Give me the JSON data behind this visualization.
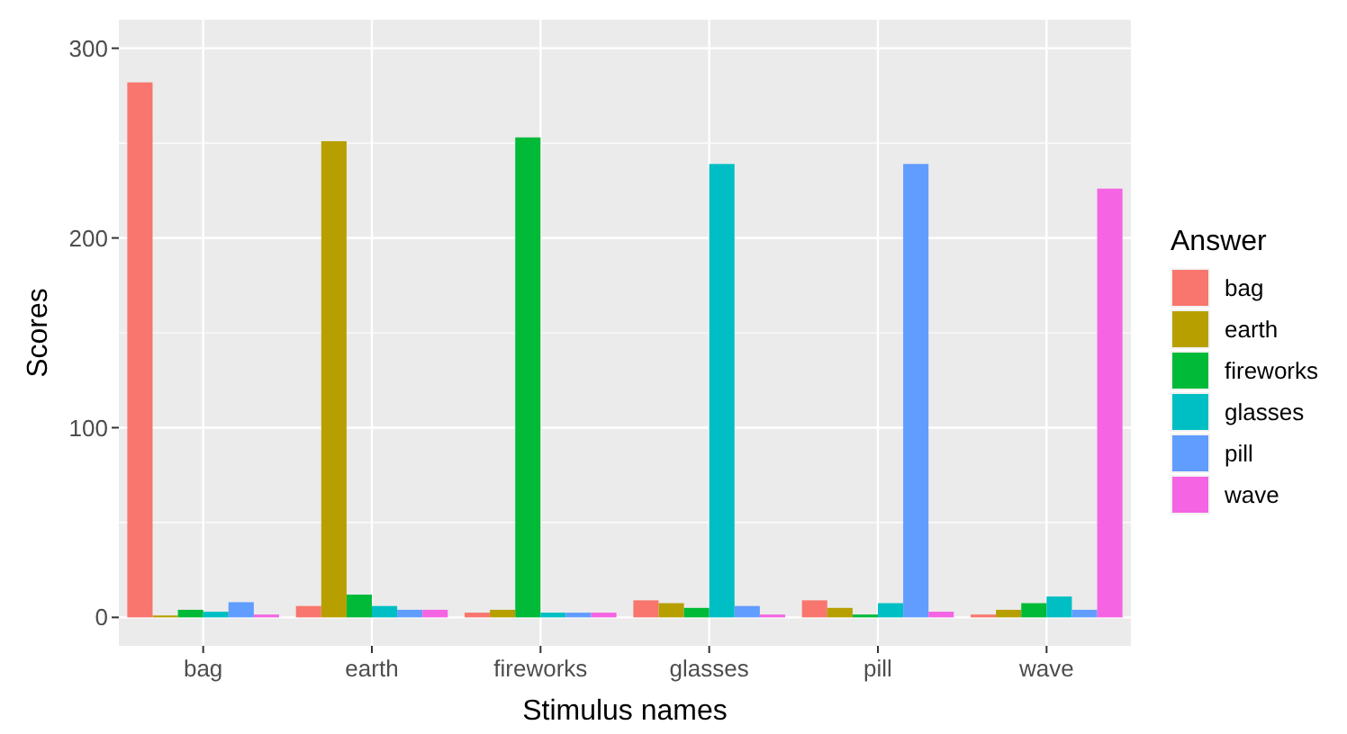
{
  "chart_data": {
    "type": "bar",
    "xlabel": "Stimulus names",
    "ylabel": "Scores",
    "legend_title": "Answer",
    "categories": [
      "bag",
      "earth",
      "fireworks",
      "glasses",
      "pill",
      "wave"
    ],
    "series": [
      {
        "name": "bag",
        "color": "#f8766d",
        "values": [
          282,
          6,
          2.5,
          9,
          9,
          1.5
        ]
      },
      {
        "name": "earth",
        "color": "#b79f00",
        "values": [
          1,
          251,
          4,
          7.5,
          5,
          4
        ]
      },
      {
        "name": "fireworks",
        "color": "#00ba38",
        "values": [
          4,
          12,
          253,
          5,
          1.5,
          7.5
        ]
      },
      {
        "name": "glasses",
        "color": "#00bfc4",
        "values": [
          3,
          6,
          2.5,
          239,
          7.5,
          11
        ]
      },
      {
        "name": "pill",
        "color": "#619cff",
        "values": [
          8,
          4,
          2.5,
          6,
          239,
          4
        ]
      },
      {
        "name": "wave",
        "color": "#f564e3",
        "values": [
          1.5,
          4,
          2.5,
          1.5,
          3,
          226
        ]
      }
    ],
    "ylim": [
      -15,
      315
    ],
    "yticks": [
      0,
      {
        "value": 50,
        "label": null
      },
      100,
      {
        "value": 150,
        "label": null
      },
      200,
      {
        "value": 250,
        "label": null
      },
      300
    ],
    "grid": true,
    "legend": "right"
  }
}
